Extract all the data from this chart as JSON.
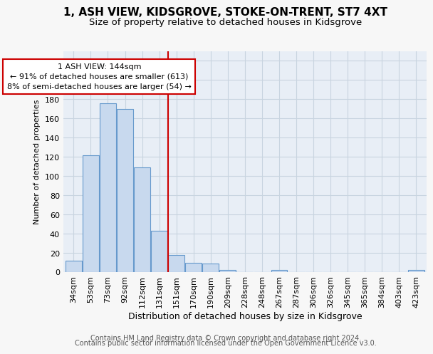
{
  "title": "1, ASH VIEW, KIDSGROVE, STOKE-ON-TRENT, ST7 4XT",
  "subtitle": "Size of property relative to detached houses in Kidsgrove",
  "xlabel": "Distribution of detached houses by size in Kidsgrove",
  "ylabel": "Number of detached properties",
  "categories": [
    "34sqm",
    "53sqm",
    "73sqm",
    "92sqm",
    "112sqm",
    "131sqm",
    "151sqm",
    "170sqm",
    "190sqm",
    "209sqm",
    "228sqm",
    "248sqm",
    "267sqm",
    "287sqm",
    "306sqm",
    "326sqm",
    "345sqm",
    "365sqm",
    "384sqm",
    "403sqm",
    "423sqm"
  ],
  "values": [
    12,
    122,
    176,
    170,
    109,
    43,
    18,
    10,
    9,
    2,
    0,
    0,
    2,
    0,
    0,
    0,
    0,
    0,
    0,
    0,
    2
  ],
  "bar_color": "#c8d9ee",
  "bar_edge_color": "#6699cc",
  "ylim": [
    0,
    230
  ],
  "yticks": [
    0,
    20,
    40,
    60,
    80,
    100,
    120,
    140,
    160,
    180,
    200,
    220
  ],
  "vline_x": 5.5,
  "vline_color": "#cc0000",
  "annotation_line1": "1 ASH VIEW: 144sqm",
  "annotation_line2": "← 91% of detached houses are smaller (613)",
  "annotation_line3": "8% of semi-detached houses are larger (54) →",
  "annotation_box_color": "#ffffff",
  "annotation_box_edge_color": "#cc0000",
  "footer_line1": "Contains HM Land Registry data © Crown copyright and database right 2024.",
  "footer_line2": "Contains public sector information licensed under the Open Government Licence v3.0.",
  "fig_background_color": "#f7f7f7",
  "plot_background_color": "#e8eef6",
  "grid_color": "#c8d4e0",
  "title_fontsize": 11,
  "subtitle_fontsize": 9.5,
  "xlabel_fontsize": 9,
  "ylabel_fontsize": 8,
  "tick_fontsize": 8,
  "annotation_fontsize": 8,
  "footer_fontsize": 7
}
